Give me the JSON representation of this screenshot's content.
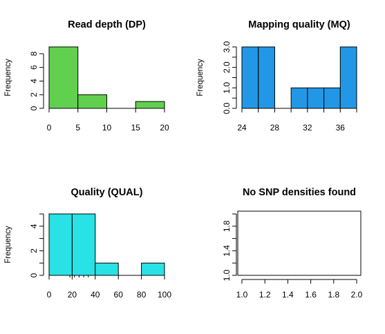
{
  "chart_data": [
    {
      "type": "bar",
      "title": "Read depth (DP)",
      "ylabel": "Frequency",
      "bins": [
        [
          0,
          5
        ],
        [
          5,
          10
        ],
        [
          10,
          15
        ],
        [
          15,
          20
        ]
      ],
      "values": [
        9,
        2,
        0,
        1
      ],
      "xlim": [
        0,
        20
      ],
      "ylim": [
        0,
        9
      ],
      "xticks": [
        0,
        5,
        10,
        15,
        20
      ],
      "yticks": [
        0,
        2,
        4,
        6,
        8
      ],
      "color": "#61D04F"
    },
    {
      "type": "bar",
      "title": "Mapping quality (MQ)",
      "ylabel": "Frequency",
      "bins": [
        [
          24,
          26
        ],
        [
          26,
          28
        ],
        [
          28,
          30
        ],
        [
          30,
          32
        ],
        [
          32,
          34
        ],
        [
          34,
          36
        ],
        [
          36,
          38
        ]
      ],
      "values": [
        3,
        3,
        0,
        1,
        1,
        1,
        3
      ],
      "xlim": [
        24,
        38
      ],
      "ylim": [
        0,
        3
      ],
      "xticks": [
        24,
        28,
        32,
        36
      ],
      "xticks_minor": [
        26,
        30,
        34,
        38
      ],
      "yticks": [
        "0.0",
        "1.0",
        "2.0",
        "3.0"
      ],
      "yticks_minor": [
        0.5,
        1.5,
        2.5
      ],
      "color": "#2297E6"
    },
    {
      "type": "bar",
      "title": "Quality (QUAL)",
      "ylabel": "Frequency",
      "bins": [
        [
          0,
          20
        ],
        [
          20,
          40
        ],
        [
          40,
          60
        ],
        [
          60,
          80
        ],
        [
          80,
          100
        ]
      ],
      "values": [
        5,
        5,
        1,
        0,
        1
      ],
      "xlim": [
        0,
        100
      ],
      "ylim": [
        0,
        5
      ],
      "xticks": [
        0,
        20,
        40,
        60,
        80,
        100
      ],
      "yticks": [
        0,
        2,
        4
      ],
      "yticks_minor": [
        1,
        3,
        5
      ],
      "rug": [
        18,
        22,
        26,
        30,
        34
      ],
      "color": "#28E2E5"
    },
    {
      "type": "line",
      "title": "No SNP densities found",
      "xlim": [
        1.0,
        2.0
      ],
      "ylim": [
        1.0,
        2.0
      ],
      "xticks": [
        "1.0",
        "1.2",
        "1.4",
        "1.6",
        "1.8",
        "2.0"
      ],
      "yticks": [
        "1.0",
        "1.4",
        "1.8"
      ],
      "yticks_minor": [
        1.2,
        1.6,
        2.0
      ],
      "series": []
    }
  ]
}
